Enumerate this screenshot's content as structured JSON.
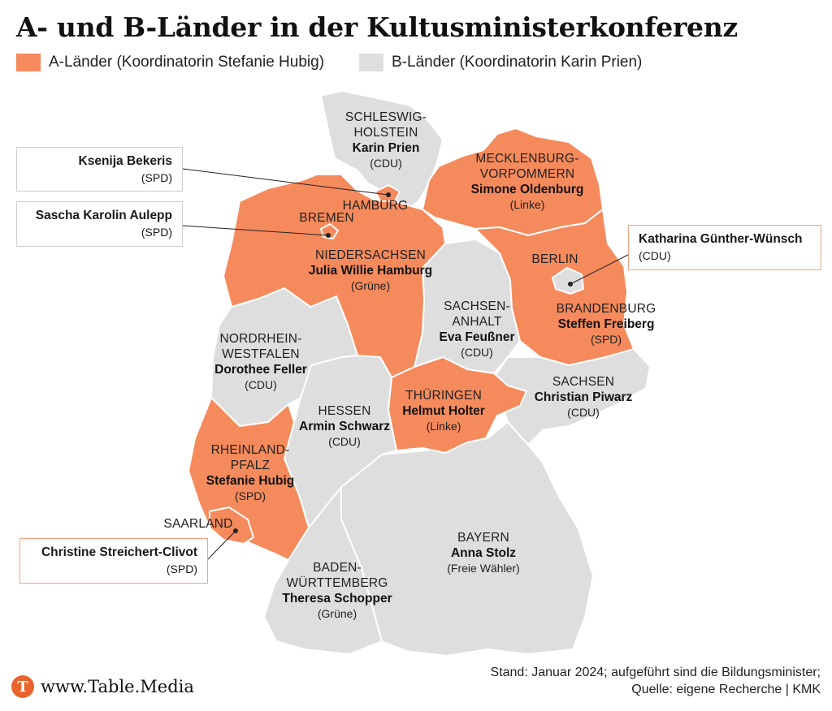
{
  "title": "A- und B-Länder in der Kultusministerkonferenz",
  "legend": {
    "a": {
      "label": "A-Länder (Koordinatorin Stefanie Hubig)",
      "color": "#f58a5c"
    },
    "b": {
      "label": "B-Länder (Koordinatorin Karin Prien)",
      "color": "#dedede"
    }
  },
  "states": {
    "sh": {
      "name_1": "SCHLESWIG-",
      "name_2": "HOLSTEIN",
      "minister": "Karin Prien",
      "party": "(CDU)",
      "group": "B"
    },
    "mv": {
      "name_1": "MECKLENBURG-",
      "name_2": "VORPOMMERN",
      "minister": "Simone Oldenburg",
      "party": "(Linke)",
      "group": "A"
    },
    "hh": {
      "name": "HAMBURG",
      "minister": "Ksenija Bekeris",
      "party": "(SPD)",
      "group": "A"
    },
    "hb": {
      "name": "BREMEN",
      "minister": "Sascha Karolin Aulepp",
      "party": "(SPD)",
      "group": "A"
    },
    "ni": {
      "name": "NIEDERSACHSEN",
      "minister": "Julia Willie Hamburg",
      "party": "(Grüne)",
      "group": "A"
    },
    "be": {
      "name": "BERLIN",
      "minister": "Katharina Günther-Wünsch",
      "party": "(CDU)",
      "group": "B"
    },
    "bb": {
      "name": "BRANDENBURG",
      "minister": "Steffen Freiberg",
      "party": "(SPD)",
      "group": "A"
    },
    "st": {
      "name_1": "SACHSEN-",
      "name_2": "ANHALT",
      "minister": "Eva Feußner",
      "party": "(CDU)",
      "group": "B"
    },
    "nw": {
      "name_1": "NORDRHEIN-",
      "name_2": "WESTFALEN",
      "minister": "Dorothee Feller",
      "party": "(CDU)",
      "group": "B"
    },
    "sn": {
      "name": "SACHSEN",
      "minister": "Christian Piwarz",
      "party": "(CDU)",
      "group": "B"
    },
    "th": {
      "name": "THÜRINGEN",
      "minister": "Helmut Holter",
      "party": "(Linke)",
      "group": "A"
    },
    "he": {
      "name": "HESSEN",
      "minister": "Armin Schwarz",
      "party": "(CDU)",
      "group": "B"
    },
    "rp": {
      "name_1": "RHEINLAND-",
      "name_2": "PFALZ",
      "minister": "Stefanie Hubig",
      "party": "(SPD)",
      "group": "A"
    },
    "sl": {
      "name": "SAARLAND",
      "minister": "Christine Streichert-Clivot",
      "party": "(SPD)",
      "group": "A"
    },
    "by": {
      "name": "BAYERN",
      "minister": "Anna Stolz",
      "party": "(Freie Wähler)",
      "group": "B"
    },
    "bw": {
      "name_1": "BADEN-",
      "name_2": "WÜRTTEMBERG",
      "minister": "Theresa Schopper",
      "party": "(Grüne)",
      "group": "B"
    }
  },
  "footer": {
    "brand": "www.Table.Media",
    "logo_letter": "T",
    "source_1": "Stand: Januar 2024; aufgeführt sind die Bildungsminister;",
    "source_2": "Quelle: eigene Recherche | KMK"
  }
}
